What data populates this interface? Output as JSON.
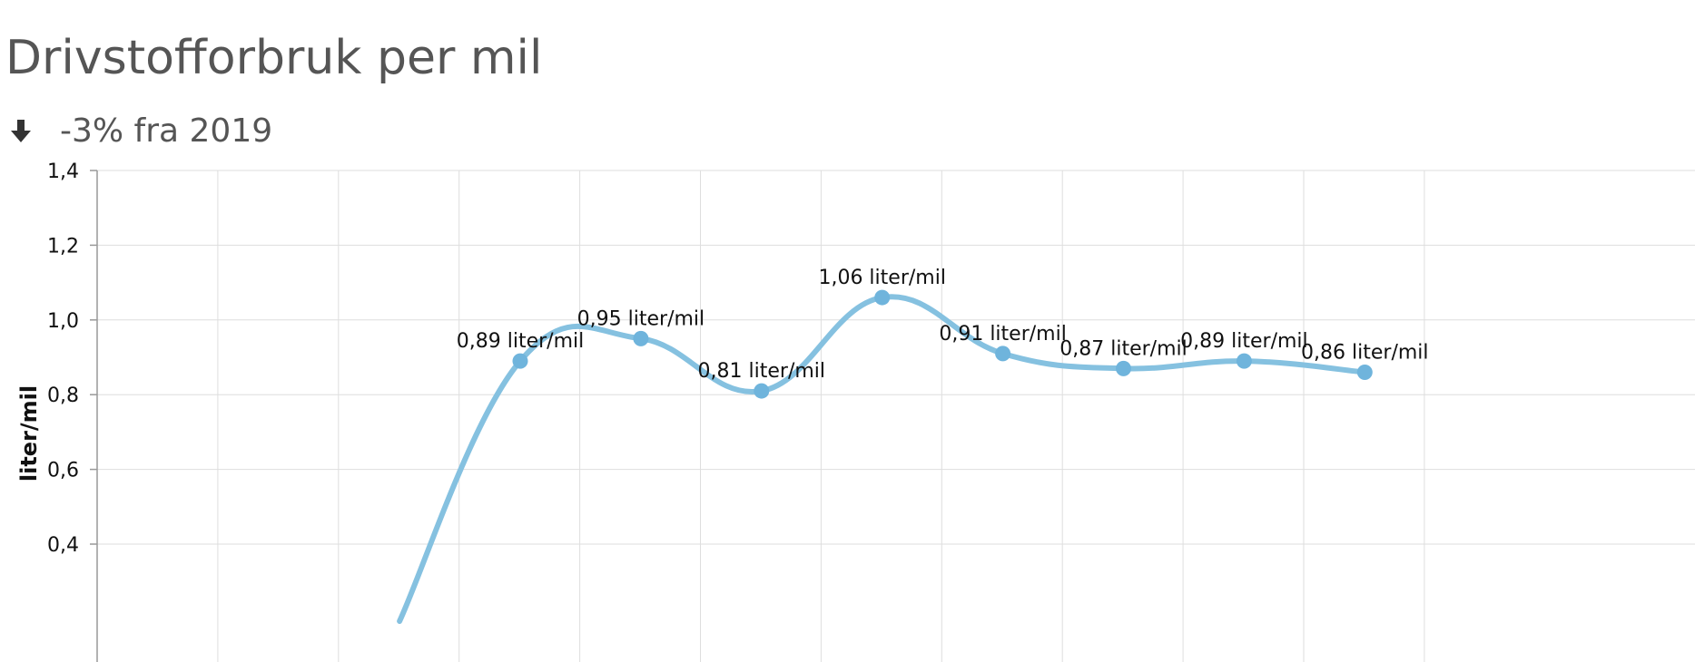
{
  "header": {
    "title": "Drivstofforbruk per mil",
    "trend_icon": "arrow-down-icon",
    "trend_text": "-3% fra 2019"
  },
  "colors": {
    "line": "#85c1e0",
    "marker": "#6fb4dc",
    "grid": "#dedede",
    "axis": "#999999",
    "text": "#555555"
  },
  "chart_data": {
    "type": "line",
    "title": "Drivstofforbruk per mil",
    "subtitle": "-3% fra 2019",
    "ylabel": "liter/mil",
    "xlabel": "",
    "ylim": [
      0.4,
      1.4
    ],
    "yticks": [
      1.4,
      1.2,
      1.0,
      0.8,
      0.6,
      0.4
    ],
    "ytick_labels": [
      "1,4",
      "1,2",
      "1,0",
      "0,8",
      "0,6",
      "0,4"
    ],
    "grid": true,
    "curve": "smooth",
    "x_slots": 11,
    "series": [
      {
        "values": [
          0.89,
          0.95,
          0.81,
          1.06,
          0.91,
          0.87,
          0.89,
          0.86
        ],
        "labels": [
          "0,89 liter/mil",
          "0,95 liter/mil",
          "0,81 liter/mil",
          "1,06 liter/mil",
          "0,91 liter/mil",
          "0,87 liter/mil",
          "0,89 liter/mil",
          "0,86 liter/mil"
        ]
      }
    ]
  }
}
